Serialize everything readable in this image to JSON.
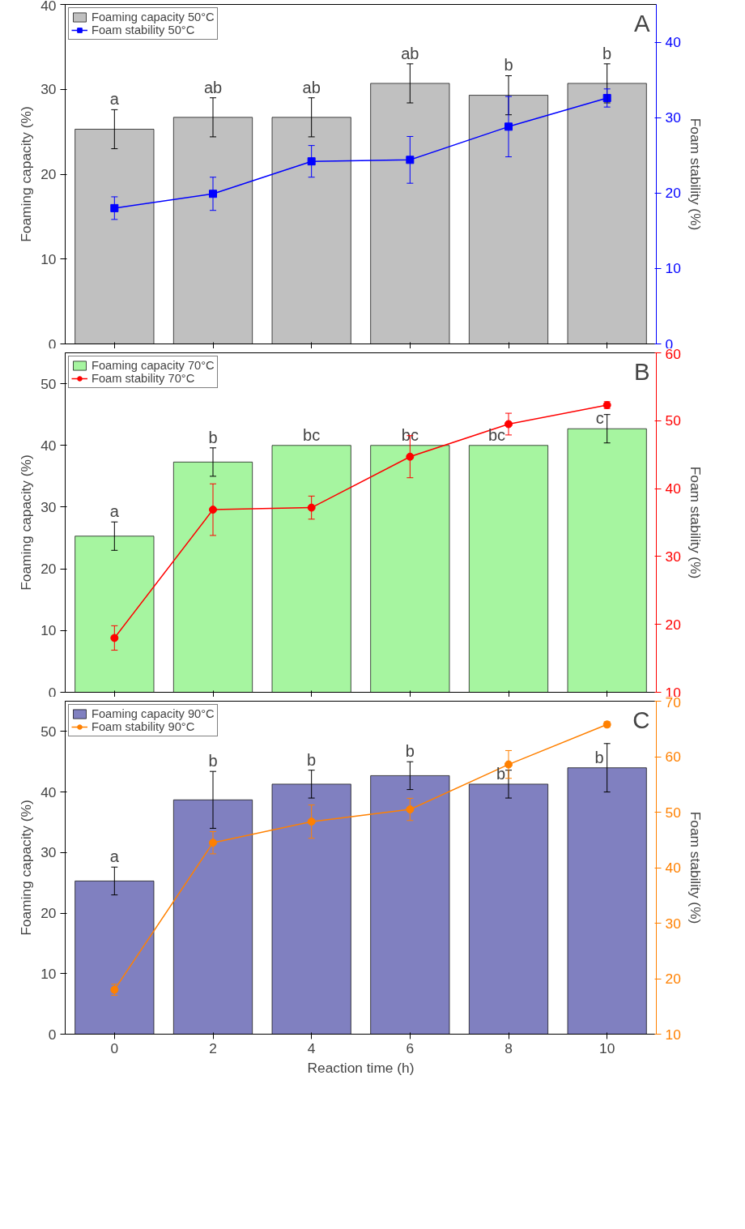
{
  "chart_data": [
    {
      "type": "bar",
      "x": [
        0,
        2,
        4,
        6,
        8,
        10
      ],
      "ylabel": "Foaming capacity (%)",
      "y2label": "Foam stability (%)",
      "xlim": [
        -1,
        11
      ],
      "xticks": [
        0,
        2,
        4,
        6,
        8,
        10
      ],
      "ylim": [
        0,
        40
      ],
      "yticks": [
        0,
        10,
        20,
        30,
        40
      ],
      "y2lim": [
        0,
        45
      ],
      "y2ticks": [
        0,
        10,
        20,
        30,
        40
      ],
      "tick_labels": "y",
      "legend": "top left",
      "grid": false,
      "series": [
        {
          "name": "Foaming capacity 50°C",
          "color": "#c0c0c0",
          "values": [
            25.3,
            26.7,
            26.7,
            30.7,
            29.3,
            30.7
          ],
          "errors": [
            2.3,
            2.3,
            2.3,
            2.3,
            2.3,
            2.3
          ],
          "value_labels": [
            "a",
            "ab",
            "ab",
            "ab",
            "b",
            "b"
          ]
        },
        {
          "name": "Foam stability 50°C",
          "type": "line",
          "axis": "y2",
          "marker": "square",
          "color": "#0000ff",
          "values": [
            18.0,
            19.9,
            24.2,
            24.4,
            28.8,
            32.6
          ],
          "errors": [
            1.5,
            2.2,
            2.1,
            3.1,
            4.0,
            1.2
          ]
        }
      ],
      "annotations": [
        "A"
      ]
    },
    {
      "type": "bar",
      "x": [
        0,
        2,
        4,
        6,
        8,
        10
      ],
      "ylabel": "Foaming capacity (%)",
      "y2label": "Foam stability (%)",
      "xlim": [
        -1,
        11
      ],
      "xticks": [
        0,
        2,
        4,
        6,
        8,
        10
      ],
      "ylim": [
        0,
        55
      ],
      "yticks": [
        0,
        10,
        20,
        30,
        40,
        50
      ],
      "y2lim": [
        10,
        60
      ],
      "y2ticks": [
        10,
        20,
        30,
        40,
        50,
        60
      ],
      "tick_labels": "y",
      "legend": "top left",
      "grid": false,
      "series": [
        {
          "name": "Foaming capacity 70°C",
          "color": "#a6f5a0",
          "values": [
            25.3,
            37.3,
            40,
            40,
            40,
            42.7
          ],
          "errors": [
            2.3,
            2.3,
            null,
            null,
            null,
            2.3
          ],
          "value_labels": [
            "a",
            "b",
            "bc",
            "bc",
            "bc",
            "c"
          ]
        },
        {
          "name": "Foam stability 70°C",
          "type": "line",
          "axis": "y2",
          "marker": "circle",
          "color": "#ff0000",
          "values": [
            18.0,
            36.9,
            37.2,
            44.7,
            49.5,
            52.3
          ],
          "errors": [
            1.8,
            3.8,
            1.7,
            3.1,
            1.6,
            0.5
          ]
        }
      ],
      "annotations": [
        "B"
      ]
    },
    {
      "type": "bar",
      "x": [
        0,
        2,
        4,
        6,
        8,
        10
      ],
      "xlabel": "Reaction time (h)",
      "ylabel": "Foaming capacity (%)",
      "y2label": "Foam stability (%)",
      "xlim": [
        -1,
        11
      ],
      "xticks": [
        0,
        2,
        4,
        6,
        8,
        10
      ],
      "ylim": [
        0,
        55
      ],
      "yticks": [
        0,
        10,
        20,
        30,
        40,
        50
      ],
      "y2lim": [
        10,
        70
      ],
      "y2ticks": [
        10,
        20,
        30,
        40,
        50,
        60,
        70
      ],
      "legend": "top left",
      "grid": false,
      "series": [
        {
          "name": "Foaming capacity 90°C",
          "color": "#8080c0",
          "values": [
            25.3,
            38.7,
            41.3,
            42.7,
            41.3,
            44.0
          ],
          "errors": [
            2.3,
            4.7,
            2.3,
            2.3,
            2.3,
            4.0
          ],
          "value_labels": [
            "a",
            "b",
            "b",
            "b",
            "b",
            "b"
          ]
        },
        {
          "name": "Foam stability 90°C",
          "type": "line",
          "axis": "y2",
          "marker": "circle",
          "color": "#ff8000",
          "values": [
            18.0,
            44.5,
            48.3,
            50.5,
            58.6,
            65.8
          ],
          "errors": [
            1.0,
            2.0,
            3.0,
            2.0,
            2.5,
            0.5
          ]
        }
      ],
      "annotations": [
        "C"
      ]
    }
  ]
}
